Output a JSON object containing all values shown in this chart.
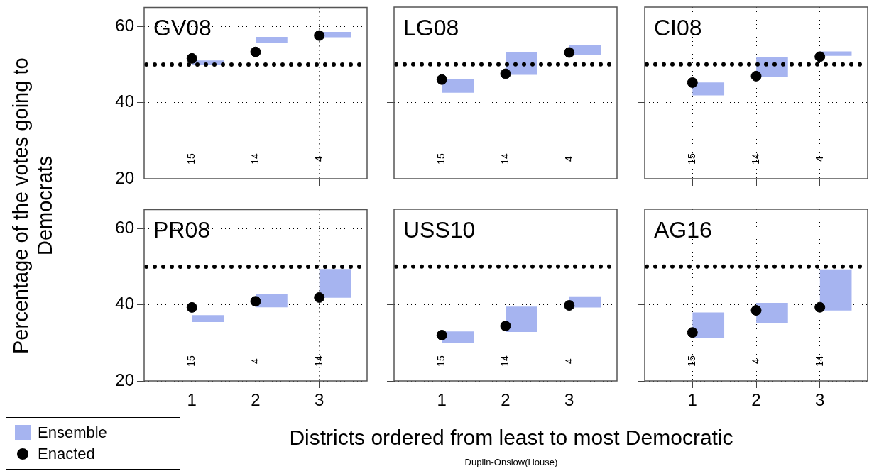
{
  "chart_data": [
    {
      "type": "scatter",
      "title": "GV08",
      "ylabel": "Percentage of the votes going to Democrats",
      "x": [
        1,
        2,
        3
      ],
      "xlim": [
        0.25,
        3.75
      ],
      "ylim": [
        20,
        65
      ],
      "xticks": [
        1,
        2,
        3
      ],
      "yticks": [
        20,
        40,
        60
      ],
      "grid": true,
      "marker": "circle",
      "tick_labels": "y",
      "ref_lines": [
        {
          "axis": "y",
          "value": 50,
          "color": "#000000",
          "line_style": "dotted"
        }
      ],
      "series": [
        {
          "type": "bar",
          "color": "#a6b4f0",
          "x": [
            1.25,
            2.25,
            3.25
          ],
          "base": [
            50,
            55.7,
            57.2
          ],
          "values": [
            1,
            1.5,
            1.3
          ]
        },
        {
          "color": "#000000",
          "values": [
            51.6,
            53.3,
            57.6
          ]
        }
      ],
      "annotations": [
        "15",
        "14",
        "4"
      ]
    },
    {
      "type": "scatter",
      "title": "LG08",
      "x": [
        1,
        2,
        3
      ],
      "xlim": [
        0.25,
        3.75
      ],
      "ylim": [
        20,
        65
      ],
      "xticks": [
        1,
        2,
        3
      ],
      "yticks": [
        20,
        40,
        60
      ],
      "grid": true,
      "marker": "circle",
      "tick_labels": false,
      "ref_lines": [
        {
          "axis": "y",
          "value": 50,
          "color": "#000000",
          "line_style": "dotted"
        }
      ],
      "series": [
        {
          "type": "bar",
          "color": "#a6b4f0",
          "x": [
            1.25,
            2.25,
            3.25
          ],
          "base": [
            42.6,
            47.3,
            52.5
          ],
          "values": [
            3.4,
            5.8,
            2.5
          ]
        },
        {
          "color": "#000000",
          "values": [
            46.0,
            47.5,
            53.1
          ]
        }
      ],
      "annotations": [
        "15",
        "14",
        "4"
      ]
    },
    {
      "type": "scatter",
      "title": "CI08",
      "x": [
        1,
        2,
        3
      ],
      "xlim": [
        0.25,
        3.75
      ],
      "ylim": [
        20,
        65
      ],
      "xticks": [
        1,
        2,
        3
      ],
      "yticks": [
        20,
        40,
        60
      ],
      "grid": true,
      "marker": "circle",
      "tick_labels": false,
      "ref_lines": [
        {
          "axis": "y",
          "value": 50,
          "color": "#000000",
          "line_style": "dotted"
        }
      ],
      "series": [
        {
          "type": "bar",
          "color": "#a6b4f0",
          "x": [
            1.25,
            2.25,
            3.25
          ],
          "base": [
            41.9,
            46.7,
            52.3
          ],
          "values": [
            3.3,
            5.1,
            1.0
          ]
        },
        {
          "color": "#000000",
          "values": [
            45.2,
            46.9,
            52.0
          ]
        }
      ],
      "annotations": [
        "15",
        "14",
        "4"
      ]
    },
    {
      "type": "scatter",
      "title": "PR08",
      "x": [
        1,
        2,
        3
      ],
      "xlim": [
        0.25,
        3.75
      ],
      "ylim": [
        20,
        65
      ],
      "xticks": [
        1,
        2,
        3
      ],
      "yticks": [
        20,
        40,
        60
      ],
      "grid": true,
      "marker": "circle",
      "legend": "bottom left",
      "ref_lines": [
        {
          "axis": "y",
          "value": 50,
          "color": "#000000",
          "line_style": "dotted"
        }
      ],
      "series": [
        {
          "type": "bar",
          "name": "Ensemble",
          "color": "#a6b4f0",
          "x": [
            1.25,
            2.25,
            3.25
          ],
          "base": [
            35.5,
            39.4,
            41.9
          ],
          "values": [
            1.7,
            3.4,
            7.4
          ]
        },
        {
          "name": "Enacted",
          "color": "#000000",
          "values": [
            39.3,
            40.9,
            41.9
          ]
        }
      ],
      "annotations": [
        "15",
        "4",
        "14"
      ]
    },
    {
      "type": "scatter",
      "title": "USS10",
      "xlabel": "Districts ordered from least to most Democratic",
      "x": [
        1,
        2,
        3
      ],
      "xlim": [
        0.25,
        3.75
      ],
      "ylim": [
        20,
        65
      ],
      "xticks": [
        1,
        2,
        3
      ],
      "yticks": [
        20,
        40,
        60
      ],
      "grid": true,
      "marker": "circle",
      "tick_labels": "x",
      "ref_lines": [
        {
          "axis": "y",
          "value": 50,
          "color": "#000000",
          "line_style": "dotted"
        }
      ],
      "series": [
        {
          "type": "bar",
          "color": "#a6b4f0",
          "x": [
            1.25,
            2.25,
            3.25
          ],
          "base": [
            29.9,
            32.9,
            39.3
          ],
          "values": [
            3.0,
            6.5,
            2.8
          ]
        },
        {
          "color": "#000000",
          "values": [
            32.0,
            34.4,
            39.8
          ]
        }
      ],
      "annotations": [
        "15",
        "14",
        "4",
        "Duplin-Onslow(House)"
      ]
    },
    {
      "type": "scatter",
      "title": "AG16",
      "x": [
        1,
        2,
        3
      ],
      "xlim": [
        0.25,
        3.75
      ],
      "ylim": [
        20,
        65
      ],
      "xticks": [
        1,
        2,
        3
      ],
      "yticks": [
        20,
        40,
        60
      ],
      "grid": true,
      "marker": "circle",
      "tick_labels": "x",
      "ref_lines": [
        {
          "axis": "y",
          "value": 50,
          "color": "#000000",
          "line_style": "dotted"
        }
      ],
      "series": [
        {
          "type": "bar",
          "color": "#a6b4f0",
          "x": [
            1.25,
            2.25,
            3.25
          ],
          "base": [
            31.4,
            35.3,
            38.5
          ],
          "values": [
            6.5,
            5.1,
            10.7
          ]
        },
        {
          "color": "#000000",
          "values": [
            32.7,
            38.5,
            39.3
          ]
        }
      ],
      "annotations": [
        "15",
        "4",
        "14"
      ]
    }
  ]
}
